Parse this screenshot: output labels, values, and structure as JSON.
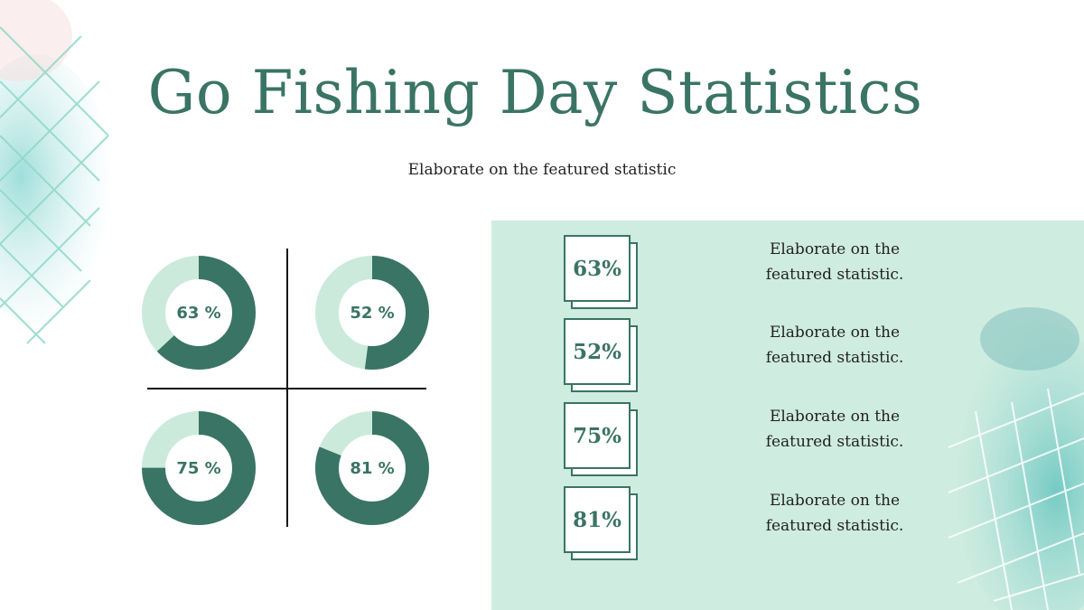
{
  "title": "Go Fishing Day Statistics",
  "subtitle": "Elaborate on the featured statistic",
  "colors": {
    "primary": "#3a7464",
    "light": "#cbeadc",
    "panel": "#cfece0",
    "text": "#222222"
  },
  "chart_data": [
    {
      "type": "pie",
      "name": "donut-63",
      "values": [
        63,
        37
      ],
      "label": "63 %"
    },
    {
      "type": "pie",
      "name": "donut-52",
      "values": [
        52,
        48
      ],
      "label": "52 %"
    },
    {
      "type": "pie",
      "name": "donut-75",
      "values": [
        75,
        25
      ],
      "label": "75 %"
    },
    {
      "type": "pie",
      "name": "donut-81",
      "values": [
        81,
        19
      ],
      "label": "81 %"
    }
  ],
  "stats": [
    {
      "value": "63%",
      "line1": "Elaborate on the",
      "line2": "featured statistic."
    },
    {
      "value": "52%",
      "line1": "Elaborate on the",
      "line2": "featured statistic."
    },
    {
      "value": "75%",
      "line1": "Elaborate on the",
      "line2": "featured statistic."
    },
    {
      "value": "81%",
      "line1": "Elaborate on the",
      "line2": "featured statistic."
    }
  ]
}
